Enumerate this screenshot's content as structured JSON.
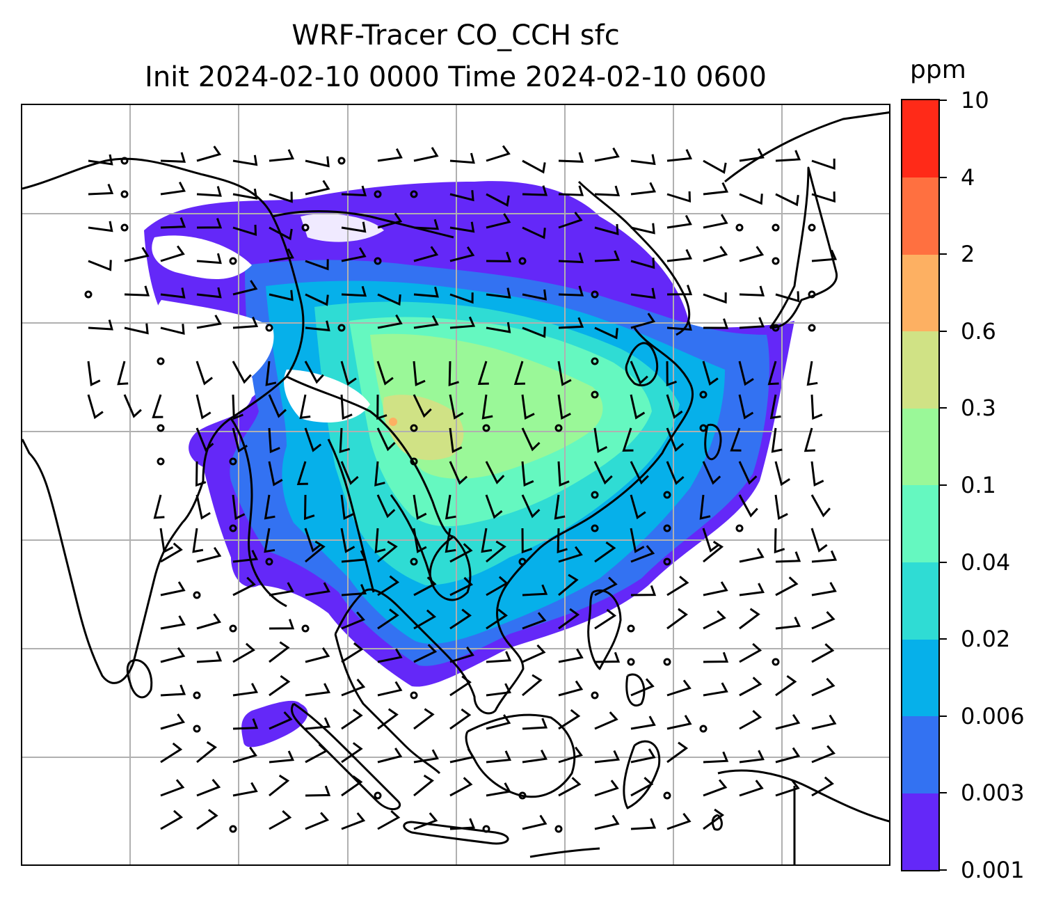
{
  "title": {
    "line1": "WRF-Tracer CO_CCH sfc",
    "line2": "Init 2024-02-10 0000 Time 2024-02-10 0600"
  },
  "colorbar": {
    "units": "ppm",
    "ticks": [
      "0.001",
      "0.003",
      "0.006",
      "0.02",
      "0.04",
      "0.1",
      "0.3",
      "0.6",
      "2",
      "4",
      "10"
    ],
    "colors": [
      "#6428f8",
      "#3372f2",
      "#06b0ea",
      "#2fdcd4",
      "#65f8c0",
      "#9af898",
      "#d0e285",
      "#fdb062",
      "#ff7040",
      "#ff2a18"
    ]
  },
  "map": {
    "variable": "CO_CCH surface tracer concentration",
    "overlay": "wind barbs",
    "gridlines": true
  }
}
